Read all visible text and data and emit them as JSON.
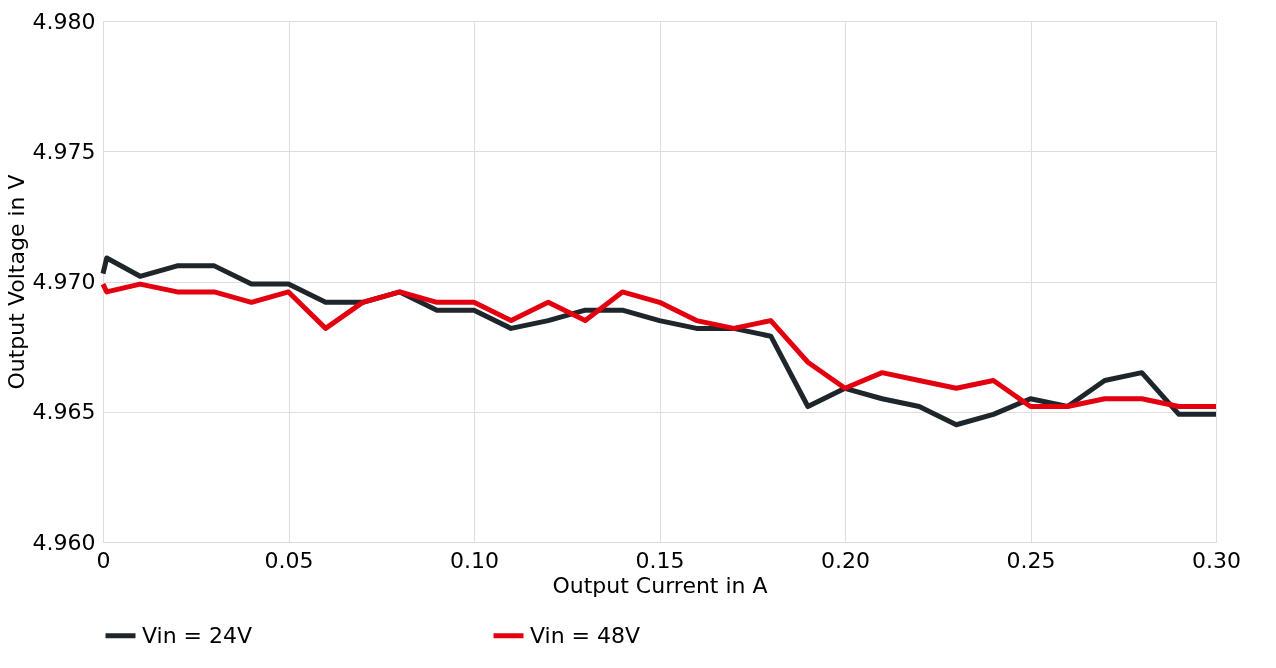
{
  "chart_data": {
    "type": "line",
    "xlabel": "Output Current in A",
    "ylabel": "Output Voltage in V",
    "xlim": [
      0,
      0.3
    ],
    "ylim": [
      4.96,
      4.98
    ],
    "xticks": [
      0,
      {
        "value": 0.05,
        "label": "0.05"
      },
      {
        "value": 0.1,
        "label": "0.10"
      },
      {
        "value": 0.15,
        "label": "0.15"
      },
      {
        "value": 0.2,
        "label": "0.20"
      },
      {
        "value": 0.25,
        "label": "0.25"
      },
      {
        "value": 0.3,
        "label": "0.30"
      }
    ],
    "yticks": [
      {
        "value": 4.96,
        "label": "4.960"
      },
      {
        "value": 4.965,
        "label": "4.965"
      },
      {
        "value": 4.97,
        "label": "4.970"
      },
      {
        "value": 4.975,
        "label": "4.975"
      },
      {
        "value": 4.98,
        "label": "4.980"
      }
    ],
    "grid": true,
    "legend": "bottom",
    "line_style": "solid",
    "marker": "none",
    "series": [
      {
        "name": "Vin = 24V",
        "color": "#1e252b",
        "x": [
          0,
          0.001,
          0.01,
          0.02,
          0.03,
          0.04,
          0.05,
          0.06,
          0.07,
          0.08,
          0.09,
          0.1,
          0.11,
          0.12,
          0.13,
          0.14,
          0.15,
          0.16,
          0.17,
          0.18,
          0.19,
          0.2,
          0.21,
          0.22,
          0.23,
          0.24,
          0.25,
          0.26,
          0.27,
          0.28,
          0.29,
          0.3
        ],
        "values": [
          4.9703,
          4.9709,
          4.9702,
          4.9706,
          4.9706,
          4.9699,
          4.9699,
          4.9692,
          4.9692,
          4.9696,
          4.9689,
          4.9689,
          4.9682,
          4.9685,
          4.9689,
          4.9689,
          4.9685,
          4.9682,
          4.9682,
          4.9679,
          4.9652,
          4.9659,
          4.9655,
          4.9652,
          4.9645,
          4.9649,
          4.9655,
          4.9652,
          4.9662,
          4.9665,
          4.9649,
          4.9649
        ]
      },
      {
        "name": "Vin = 48V",
        "color": "#e3000f",
        "x": [
          0,
          0.001,
          0.01,
          0.02,
          0.03,
          0.04,
          0.05,
          0.06,
          0.07,
          0.08,
          0.09,
          0.1,
          0.11,
          0.12,
          0.13,
          0.14,
          0.15,
          0.16,
          0.17,
          0.18,
          0.19,
          0.2,
          0.21,
          0.22,
          0.23,
          0.24,
          0.25,
          0.26,
          0.27,
          0.28,
          0.29,
          0.3
        ],
        "values": [
          4.9699,
          4.9696,
          4.9699,
          4.9696,
          4.9696,
          4.9692,
          4.9696,
          4.9682,
          4.9692,
          4.9696,
          4.9692,
          4.9692,
          4.9685,
          4.9692,
          4.9685,
          4.9696,
          4.9692,
          4.9685,
          4.9682,
          4.9685,
          4.9669,
          4.9659,
          4.9665,
          4.9662,
          4.9659,
          4.9662,
          4.9652,
          4.9652,
          4.9655,
          4.9655,
          4.9652,
          4.9652
        ]
      }
    ]
  }
}
